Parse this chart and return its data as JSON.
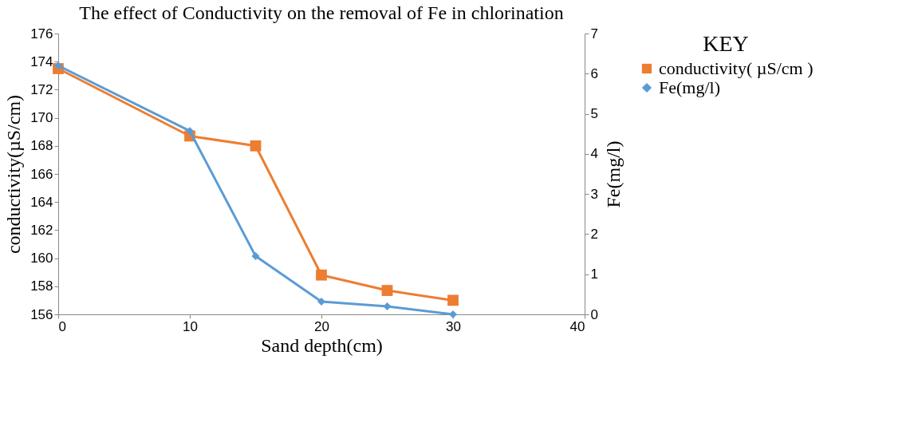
{
  "chart_data": {
    "type": "line",
    "title": "The effect of Conductivity on the removal of Fe in chlorination",
    "xlabel": "Sand depth(cm)",
    "ylabel": "conductivity(µS/cm)",
    "y2label": "Fe(mg/l)",
    "legend_title": "KEY",
    "x": [
      0,
      10,
      15,
      20,
      25,
      30
    ],
    "series": [
      {
        "name": "conductivity( µS/cm )",
        "color": "#ed7d31",
        "marker": "square",
        "values": [
          173.5,
          168.7,
          168.0,
          158.8,
          157.7,
          157.0
        ]
      },
      {
        "name": "Fe(mg/l)",
        "color": "#5b9bd5",
        "marker": "diamond",
        "axis": "y2",
        "values": [
          6.2,
          4.57,
          1.45,
          0.32,
          0.2,
          0.0
        ]
      }
    ],
    "xlim": [
      0,
      40
    ],
    "xticks": [
      0,
      10,
      20,
      30,
      40
    ],
    "ylim": [
      156,
      176
    ],
    "yticks": [
      156,
      158,
      160,
      162,
      164,
      166,
      168,
      170,
      172,
      174,
      176
    ],
    "y2lim": [
      0,
      7
    ],
    "y2ticks": [
      0,
      1,
      2,
      3,
      4,
      5,
      6,
      7
    ],
    "grid": false,
    "legend": "right",
    "line_style": "solid"
  }
}
